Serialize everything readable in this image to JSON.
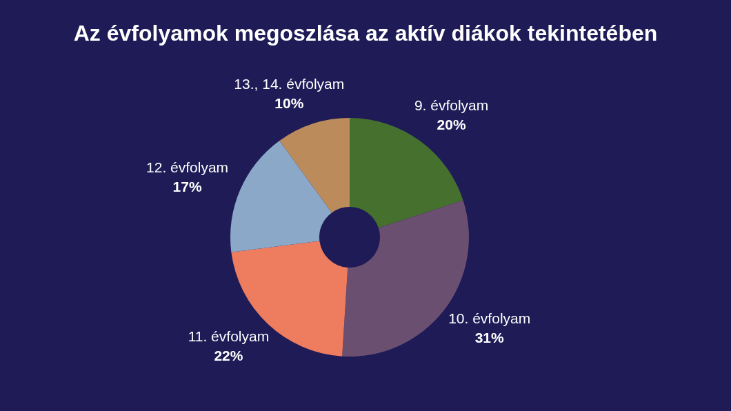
{
  "chart_data": {
    "type": "donut",
    "title": "Az évfolyamok megoszlása az aktív diákok tekintetében",
    "categories": [
      "9. évfolyam",
      "10. évfolyam",
      "11. évfolyam",
      "12. évfolyam",
      "13., 14. évfolyam"
    ],
    "values": [
      20,
      31,
      22,
      17,
      10
    ],
    "colors": [
      "#46702e",
      "#6a4f70",
      "#ee7c5e",
      "#8ba8c8",
      "#bb8b5c"
    ],
    "value_labels": [
      "20%",
      "31%",
      "22%",
      "17%",
      "10%"
    ]
  }
}
